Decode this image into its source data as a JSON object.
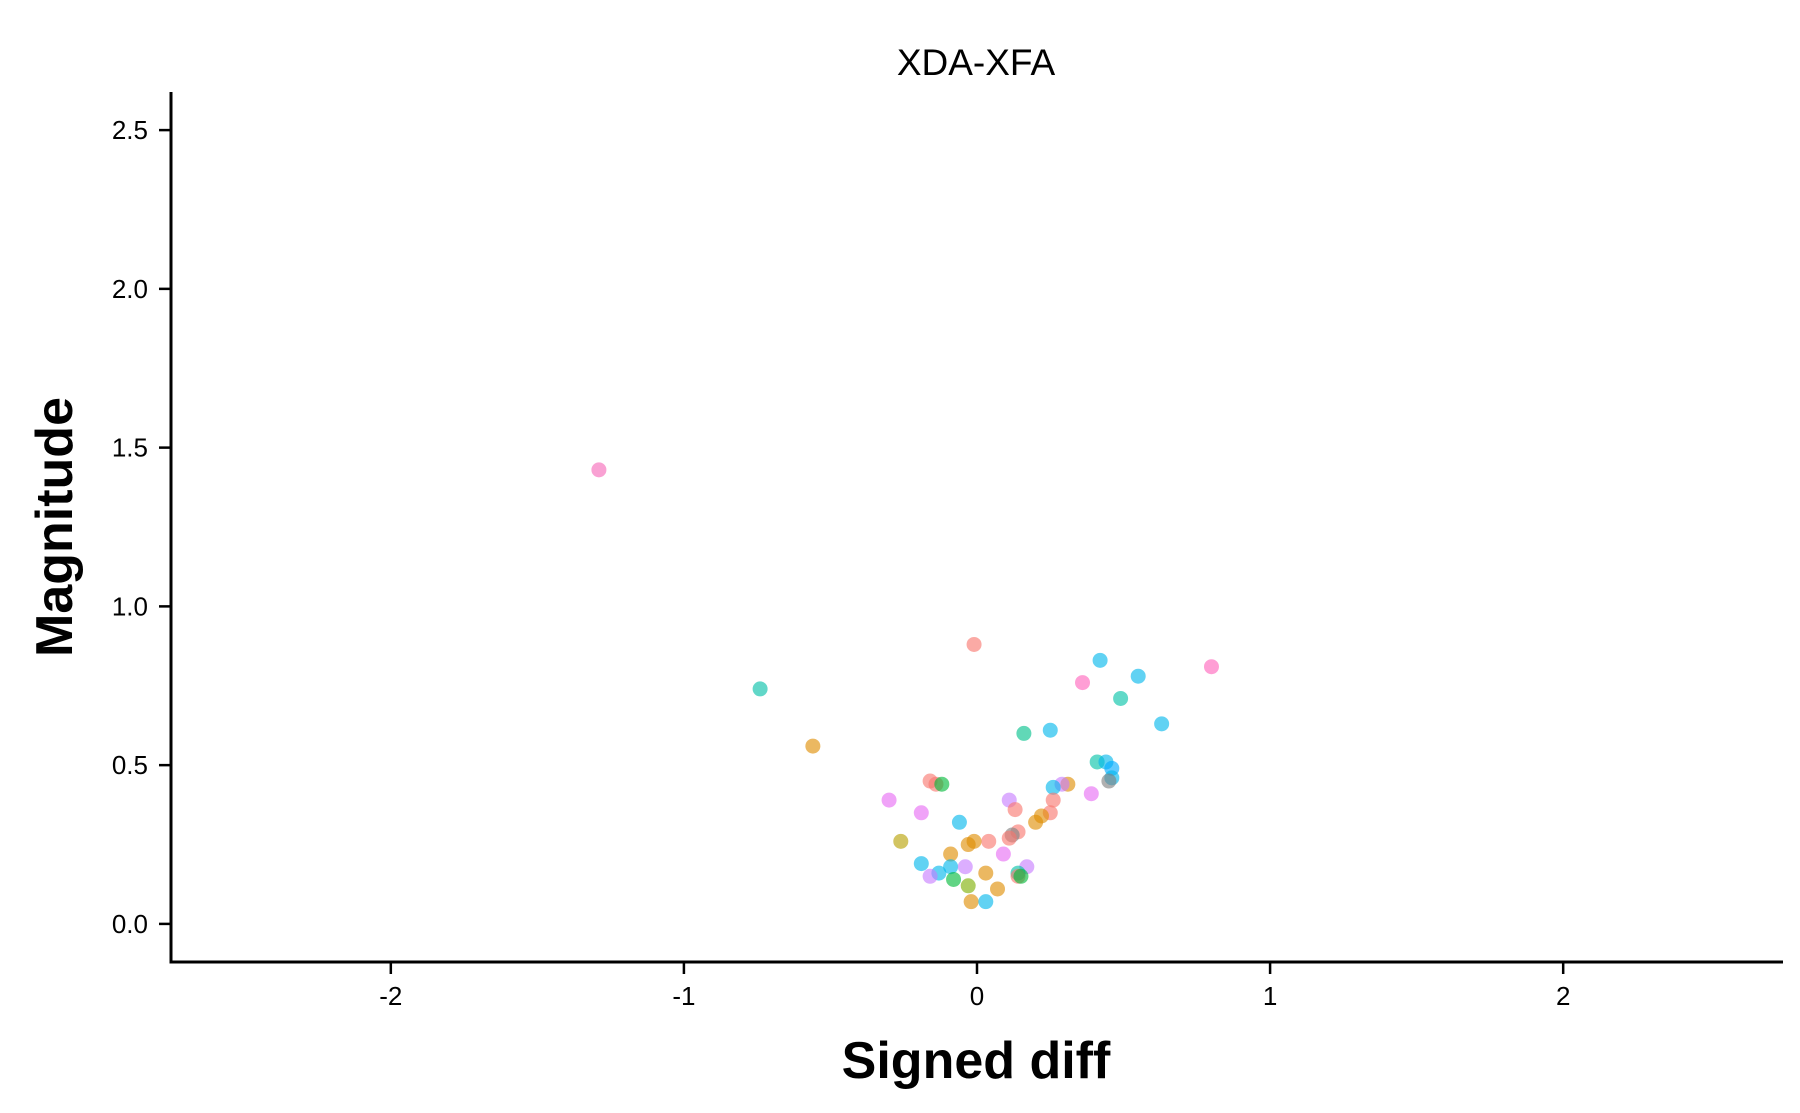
{
  "chart_data": {
    "type": "scatter",
    "title": "XDA-XFA",
    "xlabel": "Signed diff",
    "ylabel": "Magnitude",
    "xlim": [
      -2.75,
      2.75
    ],
    "ylim": [
      -0.12,
      2.62
    ],
    "x_ticks": [
      {
        "value": -2,
        "label": "-2"
      },
      {
        "value": -1,
        "label": "-1"
      },
      {
        "value": 0,
        "label": "0"
      },
      {
        "value": 1,
        "label": "1"
      },
      {
        "value": 2,
        "label": "2"
      }
    ],
    "y_ticks": [
      {
        "value": 0,
        "label": "0.0"
      },
      {
        "value": 0.5,
        "label": "0.5"
      },
      {
        "value": 1,
        "label": "1.0"
      },
      {
        "value": 1.5,
        "label": "1.5"
      },
      {
        "value": 2,
        "label": "2.0"
      },
      {
        "value": 2.5,
        "label": "2.5"
      }
    ],
    "grid": false,
    "legend": "none",
    "points": [
      {
        "x": -1.29,
        "y": 1.43,
        "color": "#f568b8"
      },
      {
        "x": -0.74,
        "y": 0.74,
        "color": "#00bfa6"
      },
      {
        "x": -0.56,
        "y": 0.56,
        "color": "#de8c00"
      },
      {
        "x": -0.01,
        "y": 0.88,
        "color": "#f8766d"
      },
      {
        "x": 0.42,
        "y": 0.83,
        "color": "#00b6eb"
      },
      {
        "x": 0.55,
        "y": 0.78,
        "color": "#00b6eb"
      },
      {
        "x": 0.36,
        "y": 0.76,
        "color": "#ff62bc"
      },
      {
        "x": 0.8,
        "y": 0.81,
        "color": "#ff62bc"
      },
      {
        "x": 0.49,
        "y": 0.71,
        "color": "#00c1a7"
      },
      {
        "x": 0.63,
        "y": 0.63,
        "color": "#00b6eb"
      },
      {
        "x": 0.25,
        "y": 0.61,
        "color": "#00b6eb"
      },
      {
        "x": 0.16,
        "y": 0.6,
        "color": "#00c08b"
      },
      {
        "x": 0.41,
        "y": 0.51,
        "color": "#00c1a7"
      },
      {
        "x": 0.44,
        "y": 0.51,
        "color": "#00b6eb"
      },
      {
        "x": 0.46,
        "y": 0.49,
        "color": "#00a9ff"
      },
      {
        "x": 0.46,
        "y": 0.46,
        "color": "#00b6eb"
      },
      {
        "x": 0.45,
        "y": 0.45,
        "color": "#7f7f7f"
      },
      {
        "x": 0.31,
        "y": 0.44,
        "color": "#de8c00"
      },
      {
        "x": 0.29,
        "y": 0.44,
        "color": "#c77cff"
      },
      {
        "x": 0.26,
        "y": 0.43,
        "color": "#00b6eb"
      },
      {
        "x": 0.39,
        "y": 0.41,
        "color": "#e76bf3"
      },
      {
        "x": -0.16,
        "y": 0.45,
        "color": "#f8766d"
      },
      {
        "x": -0.14,
        "y": 0.44,
        "color": "#f8766d"
      },
      {
        "x": -0.12,
        "y": 0.44,
        "color": "#00ba38"
      },
      {
        "x": -0.3,
        "y": 0.39,
        "color": "#e76bf3"
      },
      {
        "x": -0.19,
        "y": 0.35,
        "color": "#e76bf3"
      },
      {
        "x": 0.11,
        "y": 0.39,
        "color": "#c77cff"
      },
      {
        "x": 0.26,
        "y": 0.39,
        "color": "#f8766d"
      },
      {
        "x": 0.13,
        "y": 0.36,
        "color": "#f8766d"
      },
      {
        "x": 0.25,
        "y": 0.35,
        "color": "#f8766d"
      },
      {
        "x": 0.22,
        "y": 0.34,
        "color": "#de8c00"
      },
      {
        "x": 0.2,
        "y": 0.32,
        "color": "#de8c00"
      },
      {
        "x": -0.06,
        "y": 0.32,
        "color": "#00b6eb"
      },
      {
        "x": 0.14,
        "y": 0.29,
        "color": "#f8766d"
      },
      {
        "x": 0.12,
        "y": 0.28,
        "color": "#7f7f7f"
      },
      {
        "x": 0.11,
        "y": 0.27,
        "color": "#f8766d"
      },
      {
        "x": 0.04,
        "y": 0.26,
        "color": "#f8766d"
      },
      {
        "x": -0.01,
        "y": 0.26,
        "color": "#de8c00"
      },
      {
        "x": -0.03,
        "y": 0.25,
        "color": "#de8c00"
      },
      {
        "x": -0.26,
        "y": 0.26,
        "color": "#b79f00"
      },
      {
        "x": -0.09,
        "y": 0.22,
        "color": "#de8c00"
      },
      {
        "x": 0.09,
        "y": 0.22,
        "color": "#e76bf3"
      },
      {
        "x": -0.19,
        "y": 0.19,
        "color": "#00b6eb"
      },
      {
        "x": -0.09,
        "y": 0.18,
        "color": "#00b6eb"
      },
      {
        "x": -0.04,
        "y": 0.18,
        "color": "#c77cff"
      },
      {
        "x": -0.13,
        "y": 0.16,
        "color": "#00b6eb"
      },
      {
        "x": -0.16,
        "y": 0.15,
        "color": "#c77cff"
      },
      {
        "x": -0.08,
        "y": 0.14,
        "color": "#00ba38"
      },
      {
        "x": 0.03,
        "y": 0.16,
        "color": "#de8c00"
      },
      {
        "x": 0.17,
        "y": 0.18,
        "color": "#c77cff"
      },
      {
        "x": 0.14,
        "y": 0.16,
        "color": "#00c1a7"
      },
      {
        "x": 0.14,
        "y": 0.15,
        "color": "#f8766d"
      },
      {
        "x": 0.15,
        "y": 0.15,
        "color": "#00ba38"
      },
      {
        "x": -0.03,
        "y": 0.12,
        "color": "#7cae00"
      },
      {
        "x": 0.07,
        "y": 0.11,
        "color": "#de8c00"
      },
      {
        "x": -0.02,
        "y": 0.07,
        "color": "#de8c00"
      },
      {
        "x": 0.03,
        "y": 0.07,
        "color": "#00b6eb"
      }
    ]
  }
}
